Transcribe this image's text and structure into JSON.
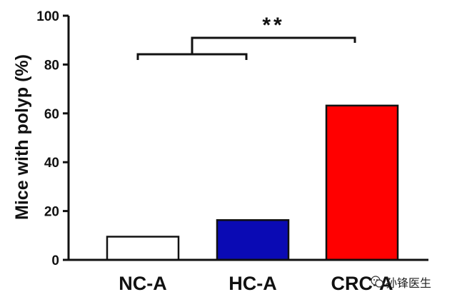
{
  "chart_data": {
    "type": "bar",
    "categories": [
      "NC-A",
      "HC-A",
      "CRC-A"
    ],
    "values": [
      9.5,
      16.3,
      63.2
    ],
    "colors": [
      "#ffffff",
      "#0a0ab4",
      "#ff0000"
    ],
    "ylabel": "Mice with polyp (%)",
    "ylim": [
      0,
      100
    ],
    "yticks": [
      "0",
      "20",
      "40",
      "60",
      "80",
      "100"
    ],
    "annotation": "**",
    "grid": false
  },
  "watermark": {
    "icon": "wechat-icon",
    "text": "孙锋医生"
  }
}
